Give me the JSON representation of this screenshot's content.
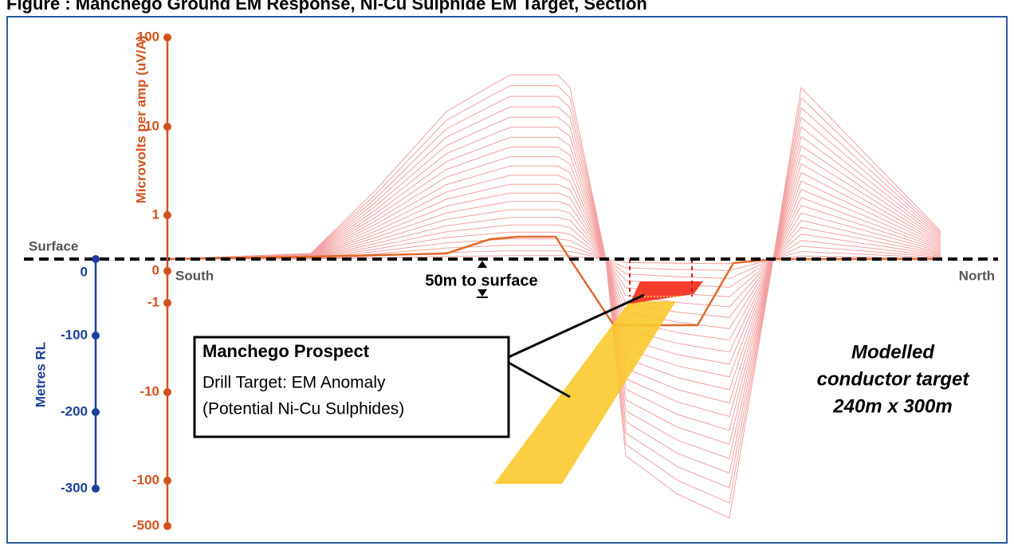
{
  "title": "Figure : Manchego Ground EM Response, Ni-Cu Sulphide EM Target, Section",
  "surface_label": "Surface",
  "south_label": "South",
  "north_label": "North",
  "em_axis": {
    "label": "Microvolts per amp (uV/A)",
    "ticks": [
      100,
      10,
      1,
      0,
      -1,
      -10,
      -100,
      -500
    ]
  },
  "depth_axis": {
    "label": "Metres RL",
    "ticks": [
      0,
      -100,
      -200,
      -300
    ]
  },
  "annotations": {
    "depth_to_surface": "50m to surface",
    "callout": {
      "title": "Manchego Prospect",
      "lines": [
        "Drill Target: EM Anomaly",
        "(Potential Ni-Cu Sulphides)"
      ]
    },
    "model": [
      "Modelled",
      "conductor target",
      "240m x 300m"
    ]
  }
}
